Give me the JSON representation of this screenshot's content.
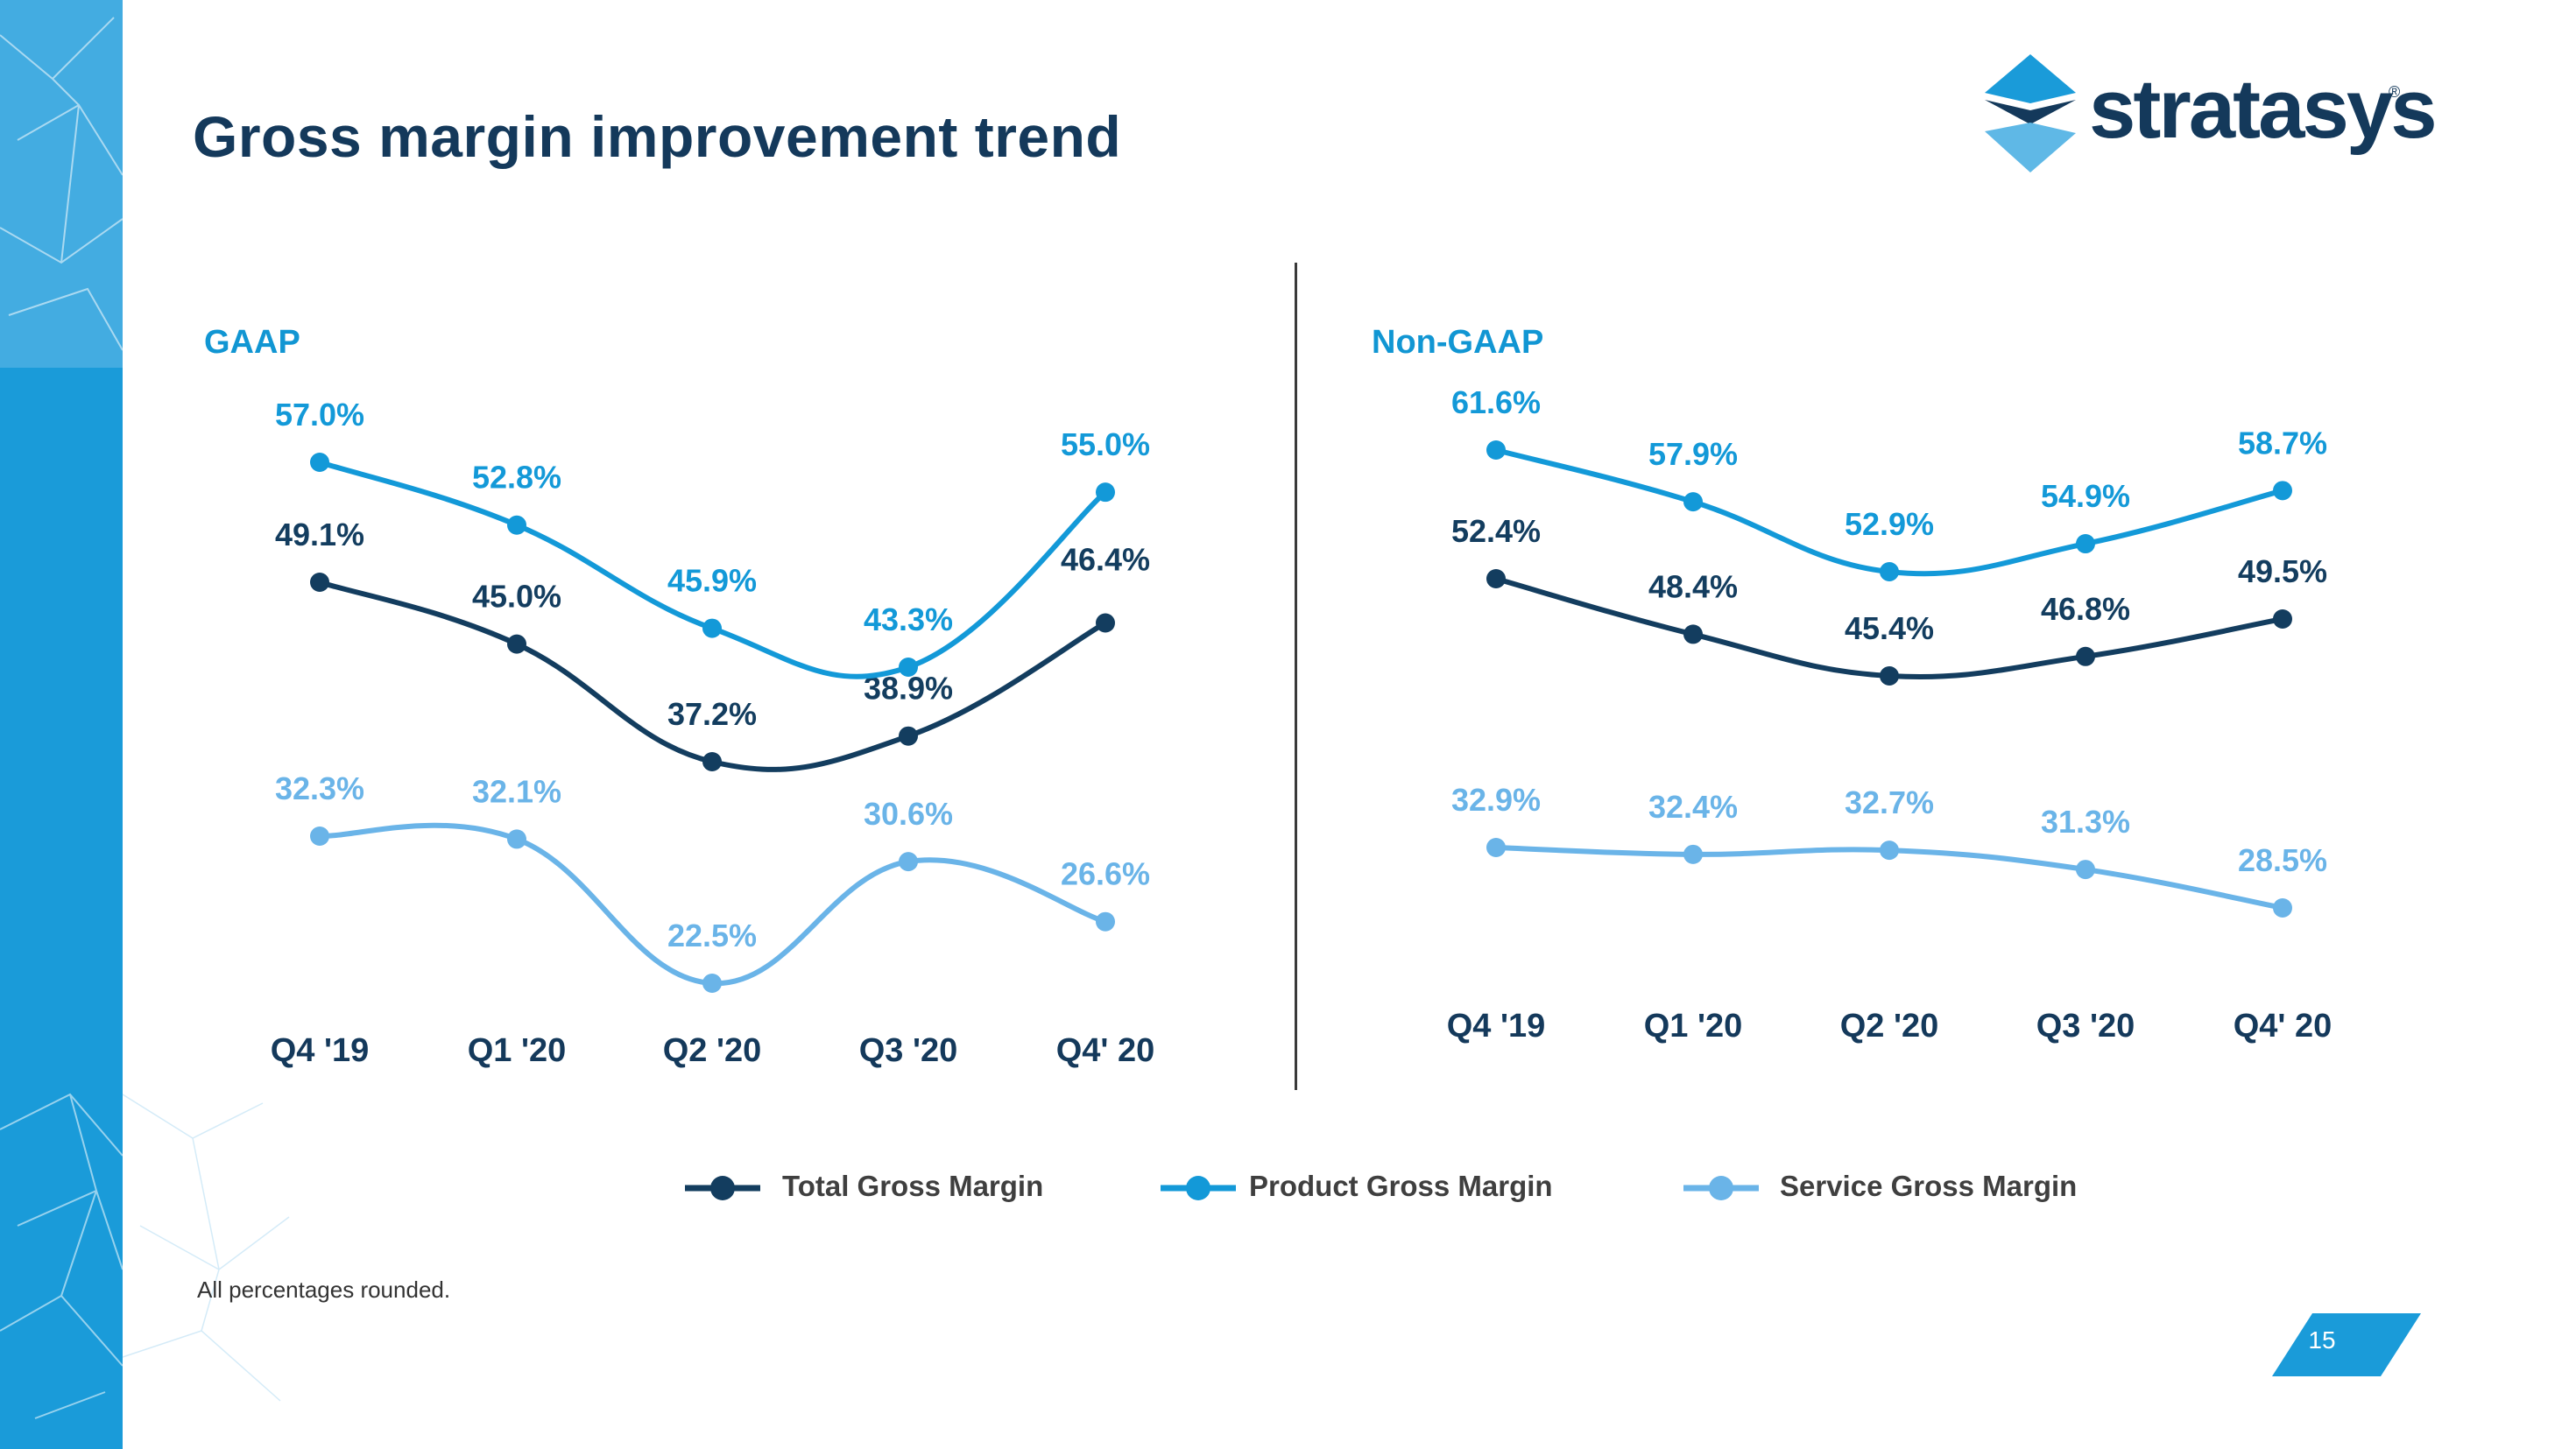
{
  "title": "Gross margin improvement trend",
  "footnote": "All percentages rounded.",
  "page_number": "15",
  "logo_text": "stratasys",
  "logo_mark": "®",
  "colors": {
    "total": "#133d5f",
    "product": "#1399d8",
    "service": "#6ab4e8",
    "title": "#14395b",
    "accent": "#1196d3"
  },
  "legend": [
    {
      "label": "Total Gross Margin",
      "color": "#133d5f"
    },
    {
      "label": "Product Gross Margin",
      "color": "#1399d8"
    },
    {
      "label": "Service Gross Margin",
      "color": "#6ab4e8"
    }
  ],
  "chart_data": [
    {
      "type": "line",
      "title": "GAAP",
      "categories": [
        "Q4 '19",
        "Q1 '20",
        "Q2 '20",
        "Q3 '20",
        "Q4' 20"
      ],
      "series": [
        {
          "name": "Total Gross Margin",
          "values": [
            49.1,
            45.0,
            37.2,
            38.9,
            46.4
          ],
          "labels": [
            "49.1%",
            "45.0%",
            "37.2%",
            "38.9%",
            "46.4%"
          ]
        },
        {
          "name": "Product Gross Margin",
          "values": [
            57.0,
            52.8,
            45.9,
            43.3,
            55.0
          ],
          "labels": [
            "57.0%",
            "52.8%",
            "45.9%",
            "43.3%",
            "55.0%"
          ]
        },
        {
          "name": "Service Gross Margin",
          "values": [
            32.3,
            32.1,
            22.5,
            30.6,
            26.6
          ],
          "labels": [
            "32.3%",
            "32.1%",
            "22.5%",
            "30.6%",
            "26.6%"
          ]
        }
      ],
      "legend": "bottom"
    },
    {
      "type": "line",
      "title": "Non-GAAP",
      "categories": [
        "Q4 '19",
        "Q1 '20",
        "Q2 '20",
        "Q3 '20",
        "Q4' 20"
      ],
      "series": [
        {
          "name": "Total Gross Margin",
          "values": [
            52.4,
            48.4,
            45.4,
            46.8,
            49.5
          ],
          "labels": [
            "52.4%",
            "48.4%",
            "45.4%",
            "46.8%",
            "49.5%"
          ]
        },
        {
          "name": "Product Gross Margin",
          "values": [
            61.6,
            57.9,
            52.9,
            54.9,
            58.7
          ],
          "labels": [
            "61.6%",
            "57.9%",
            "52.9%",
            "54.9%",
            "58.7%"
          ]
        },
        {
          "name": "Service Gross Margin",
          "values": [
            32.9,
            32.4,
            32.7,
            31.3,
            28.5
          ],
          "labels": [
            "32.9%",
            "32.4%",
            "32.7%",
            "31.3%",
            "28.5%"
          ]
        }
      ],
      "legend": "bottom"
    }
  ]
}
